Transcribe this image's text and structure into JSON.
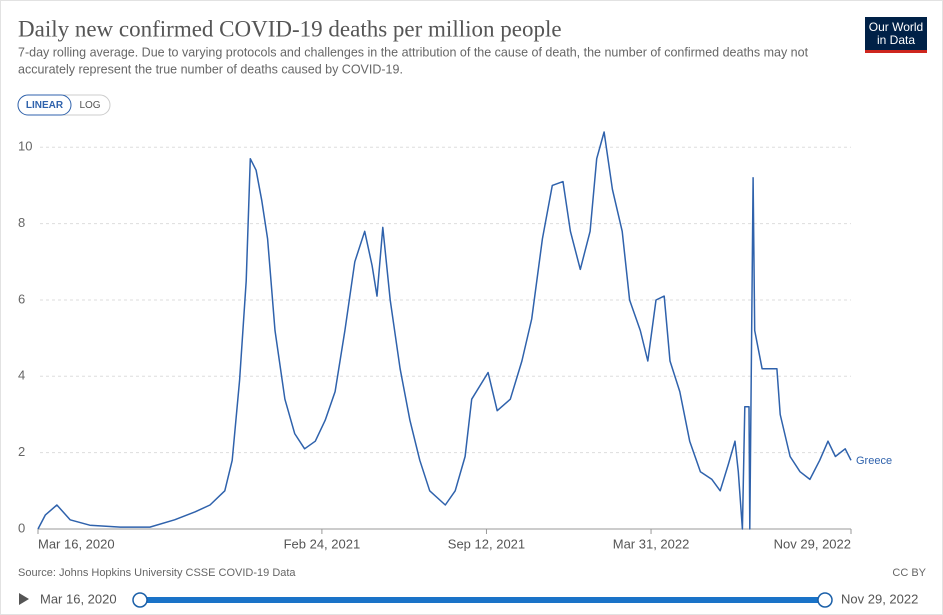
{
  "chart_data": {
    "type": "line",
    "title": "Daily new confirmed COVID-19 deaths per million people",
    "subtitle": [
      "7-day rolling average. Due to varying protocols and challenges in the attribution of the cause of death, the number of confirmed deaths may not",
      "accurately represent the true number of deaths caused by COVID-19."
    ],
    "scale_buttons": [
      "LINEAR",
      "LOG"
    ],
    "log_scale": false,
    "logo": [
      "Our World",
      "in Data"
    ],
    "source": "Source: Johns Hopkins University CSSE COVID-19 Data",
    "license": "CC BY",
    "timeline": {
      "start": "Mar 16, 2020",
      "end": "Nov 29, 2022"
    },
    "grid": true,
    "xlim": [
      "2020-03-16",
      "2022-11-29"
    ],
    "xticks": [
      {
        "value": "2020-03-16",
        "label": "Mar 16, 2020"
      },
      {
        "value": "2021-02-24",
        "label": "Feb 24, 2021"
      },
      {
        "value": "2021-09-12",
        "label": "Sep 12, 2021"
      },
      {
        "value": "2022-03-31",
        "label": "Mar 31, 2022"
      },
      {
        "value": "2022-11-29",
        "label": "Nov 29, 2022"
      }
    ],
    "ylim": [
      0,
      10.4
    ],
    "yticks": [
      0,
      2,
      4,
      6,
      8,
      10
    ],
    "x": [
      "2020-03-16",
      "2020-03-25",
      "2020-04-08",
      "2020-04-24",
      "2020-05-18",
      "2020-06-24",
      "2020-07-30",
      "2020-08-29",
      "2020-09-23",
      "2020-10-11",
      "2020-10-29",
      "2020-11-07",
      "2020-11-16",
      "2020-11-24",
      "2020-11-29",
      "2020-12-06",
      "2020-12-13",
      "2020-12-20",
      "2020-12-29",
      "2021-01-10",
      "2021-01-22",
      "2021-02-03",
      "2021-02-16",
      "2021-02-28",
      "2021-03-12",
      "2021-03-24",
      "2021-04-05",
      "2021-04-17",
      "2021-04-26",
      "2021-05-02",
      "2021-05-09",
      "2021-05-18",
      "2021-05-30",
      "2021-06-11",
      "2021-06-23",
      "2021-07-05",
      "2021-07-24",
      "2021-08-05",
      "2021-08-17",
      "2021-08-25",
      "2021-09-14",
      "2021-09-25",
      "2021-10-11",
      "2021-10-25",
      "2021-11-06",
      "2021-11-19",
      "2021-12-01",
      "2021-12-14",
      "2021-12-23",
      "2022-01-04",
      "2022-01-16",
      "2022-01-24",
      "2022-02-02",
      "2022-02-12",
      "2022-02-24",
      "2022-03-05",
      "2022-03-18",
      "2022-03-27",
      "2022-04-06",
      "2022-04-16",
      "2022-04-23",
      "2022-05-05",
      "2022-05-17",
      "2022-05-30",
      "2022-06-13",
      "2022-06-23",
      "2022-07-03",
      "2022-07-11",
      "2022-07-15",
      "2022-07-20",
      "2022-07-23",
      "2022-07-28",
      "2022-07-29",
      "2022-08-02",
      "2022-08-04",
      "2022-08-13",
      "2022-08-31",
      "2022-09-04",
      "2022-09-16",
      "2022-09-28",
      "2022-10-10",
      "2022-10-22",
      "2022-11-01",
      "2022-11-10",
      "2022-11-22",
      "2022-11-29"
    ],
    "series": [
      {
        "name": "Greece",
        "color": "#2f62ac",
        "values": [
          0,
          0.37,
          0.63,
          0.24,
          0.1,
          0.05,
          0.05,
          0.24,
          0.45,
          0.63,
          1.0,
          1.8,
          3.9,
          6.5,
          9.7,
          9.4,
          8.6,
          7.6,
          5.2,
          3.4,
          2.5,
          2.1,
          2.3,
          2.85,
          3.6,
          5.2,
          7.0,
          7.8,
          6.9,
          6.1,
          7.9,
          6.0,
          4.2,
          2.85,
          1.8,
          1.0,
          0.63,
          1.0,
          1.9,
          3.4,
          4.1,
          3.1,
          3.4,
          4.4,
          5.5,
          7.6,
          9.0,
          9.1,
          7.8,
          6.8,
          7.8,
          9.7,
          10.4,
          8.9,
          7.8,
          6.0,
          5.2,
          4.4,
          6.0,
          6.1,
          4.4,
          3.6,
          2.3,
          1.5,
          1.3,
          1.0,
          1.7,
          2.3,
          1.5,
          0,
          3.2,
          3.2,
          0,
          9.2,
          5.2,
          4.2,
          4.2,
          3.0,
          1.9,
          1.5,
          1.3,
          1.8,
          2.3,
          1.9,
          2.1,
          1.8
        ]
      }
    ]
  }
}
